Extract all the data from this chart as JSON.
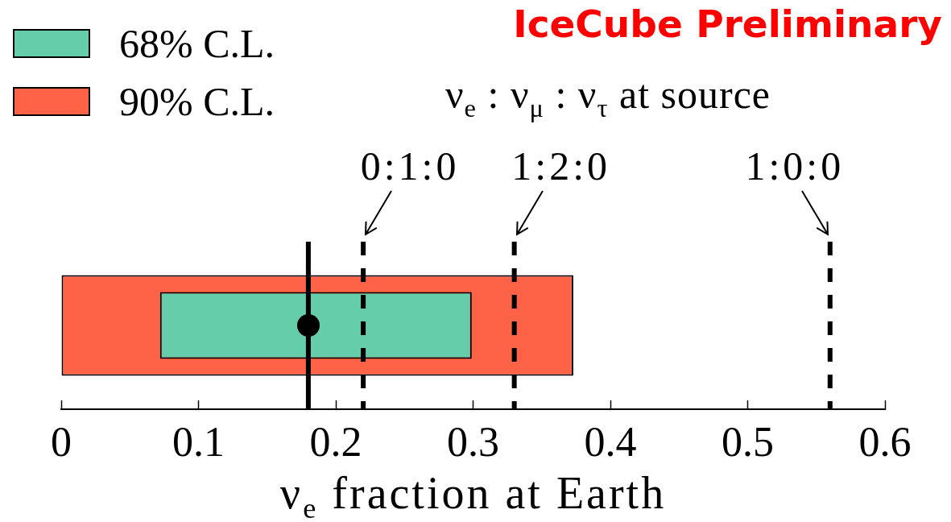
{
  "chart_data": {
    "type": "bar",
    "orientation": "horizontal",
    "categories": [
      null
    ],
    "series": [
      {
        "name": "68% C.L.",
        "color": "#66cdaa",
        "base": [
          0.072
        ],
        "values": [
          0.227
        ]
      },
      {
        "name": "90% C.L.",
        "color": "#ff6347",
        "base": [
          0
        ],
        "values": [
          0.373
        ]
      }
    ],
    "xlim": [
      0,
      0.6
    ],
    "xticks": [
      0,
      0.1,
      0.2,
      0.3,
      0.4,
      0.5,
      0.6
    ],
    "xlabel": "ν$_{e}$ fraction at Earth",
    "ref_lines": [
      {
        "axis": "x",
        "value": 0.18,
        "line_style": "solid",
        "color": "#000000"
      },
      {
        "axis": "x",
        "value": 0.22,
        "label": "0:1:0",
        "line_style": "dashed",
        "color": "#000000"
      },
      {
        "axis": "x",
        "value": 0.33,
        "label": "1:2:0",
        "line_style": "dashed",
        "color": "#000000"
      },
      {
        "axis": "x",
        "value": 0.56,
        "label": "1:0:0",
        "line_style": "dashed",
        "color": "#000000"
      }
    ],
    "annotations": [
      "IceCube Preliminary",
      "ν$_{e}$ : ν$_{μ}$ : ν$_{τ}$ at source"
    ],
    "legend": "top left"
  }
}
